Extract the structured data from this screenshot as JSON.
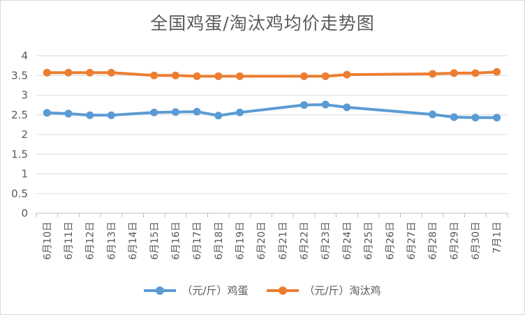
{
  "chart_data": {
    "type": "line",
    "title": "全国鸡蛋/淘汰鸡均价走势图",
    "categories": [
      "6月10日",
      "6月11日",
      "6月12日",
      "6月13日",
      "6月14日",
      "6月15日",
      "6月16日",
      "6月17日",
      "6月18日",
      "6月19日",
      "6月20日",
      "6月21日",
      "6月22日",
      "6月23日",
      "6月24日",
      "6月25日",
      "6月26日",
      "6月27日",
      "6月28日",
      "6月29日",
      "6月30日",
      "7月1日"
    ],
    "ylim": [
      0,
      4
    ],
    "yticks": [
      "0",
      "0.5",
      "1",
      "1.5",
      "2",
      "2.5",
      "3",
      "3.5",
      "4"
    ],
    "grid": true,
    "legend_position": "bottom",
    "series": [
      {
        "name": "（元/斤）鸡蛋",
        "color": "#5b9bd5",
        "values": [
          2.55,
          2.53,
          2.49,
          2.49,
          null,
          2.56,
          2.57,
          2.58,
          2.48,
          2.56,
          null,
          null,
          2.75,
          2.76,
          2.69,
          null,
          null,
          null,
          2.51,
          2.44,
          2.43,
          2.43
        ]
      },
      {
        "name": "（元/斤）淘汰鸡",
        "color": "#ed7d31",
        "values": [
          3.57,
          3.57,
          3.57,
          3.57,
          null,
          3.5,
          3.5,
          3.48,
          3.48,
          3.48,
          null,
          null,
          3.48,
          3.48,
          3.52,
          null,
          null,
          null,
          3.54,
          3.56,
          3.56,
          3.59
        ]
      }
    ]
  }
}
